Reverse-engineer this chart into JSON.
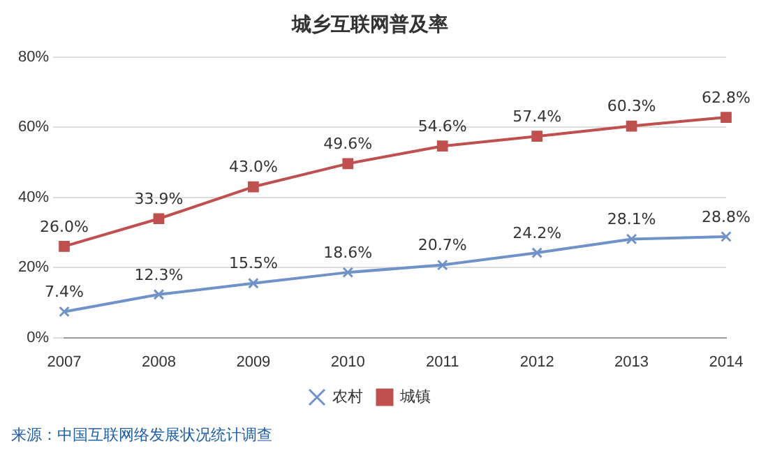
{
  "chart_data": {
    "type": "line",
    "title": "城乡互联网普及率",
    "categories": [
      "2007",
      "2008",
      "2009",
      "2010",
      "2011",
      "2012",
      "2013",
      "2014"
    ],
    "series": [
      {
        "name": "农村",
        "color": "#6f93c9",
        "marker": "cross",
        "values": [
          7.4,
          12.3,
          15.5,
          18.6,
          20.7,
          24.2,
          28.1,
          28.8
        ],
        "value_labels": [
          "7.4%",
          "12.3%",
          "15.5%",
          "18.6%",
          "20.7%",
          "24.2%",
          "28.1%",
          "28.8%"
        ]
      },
      {
        "name": "城镇",
        "color": "#c0504d",
        "marker": "square",
        "values": [
          26.0,
          33.9,
          43.0,
          49.6,
          54.6,
          57.4,
          60.3,
          62.8
        ],
        "value_labels": [
          "26.0%",
          "33.9%",
          "43.0%",
          "49.6%",
          "54.6%",
          "57.4%",
          "60.3%",
          "62.8%"
        ]
      }
    ],
    "ylim": [
      0,
      80
    ],
    "yticks": [
      {
        "value": 0,
        "label": "0%"
      },
      {
        "value": 20,
        "label": "20%"
      },
      {
        "value": 40,
        "label": "40%"
      },
      {
        "value": 60,
        "label": "60%"
      },
      {
        "value": 80,
        "label": "80%"
      }
    ],
    "grid": "y",
    "legend": "bottom",
    "line_style": "solid",
    "annotations": [
      "来源：中国互联网络发展状况统计调查"
    ]
  }
}
